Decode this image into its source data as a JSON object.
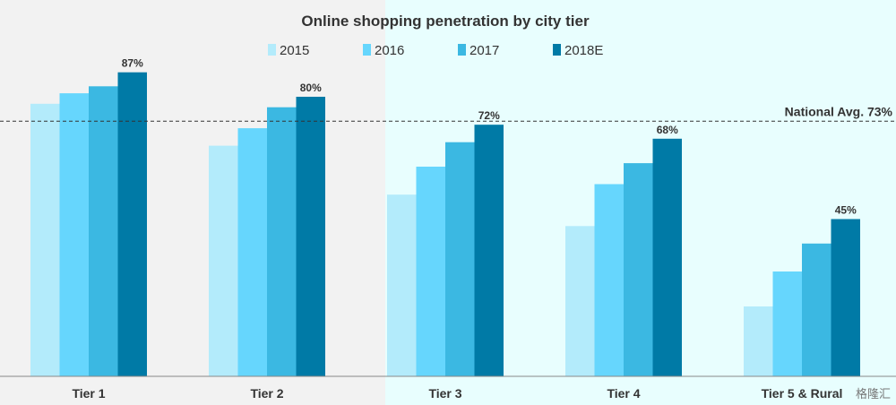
{
  "chart_data": {
    "type": "bar",
    "title": "Online shopping penetration by city tier",
    "xlabel": "",
    "ylabel": "",
    "categories": [
      "Tier 1",
      "Tier 2",
      "Tier 3",
      "Tier 4",
      "Tier 5 & Rural"
    ],
    "series": [
      {
        "name": "2015",
        "values": [
          78,
          66,
          52,
          43,
          20
        ],
        "color": "#b3ebfb"
      },
      {
        "name": "2016",
        "values": [
          81,
          71,
          60,
          55,
          30
        ],
        "color": "#66d6fd"
      },
      {
        "name": "2017",
        "values": [
          83,
          77,
          67,
          61,
          38
        ],
        "color": "#3bb8e2"
      },
      {
        "name": "2018E",
        "values": [
          87,
          80,
          72,
          68,
          45
        ],
        "color": "#007aa6"
      }
    ],
    "data_labels": [
      "87%",
      "80%",
      "72%",
      "68%",
      "45%"
    ],
    "reference_line": {
      "value": 73,
      "label": "National Avg. 73%"
    },
    "ylim": [
      0,
      100
    ],
    "grid": false,
    "legend_position": "top",
    "highlight_region": {
      "from_category": "Tier 3",
      "color": "#e8fefe"
    }
  },
  "watermark": "格隆汇"
}
